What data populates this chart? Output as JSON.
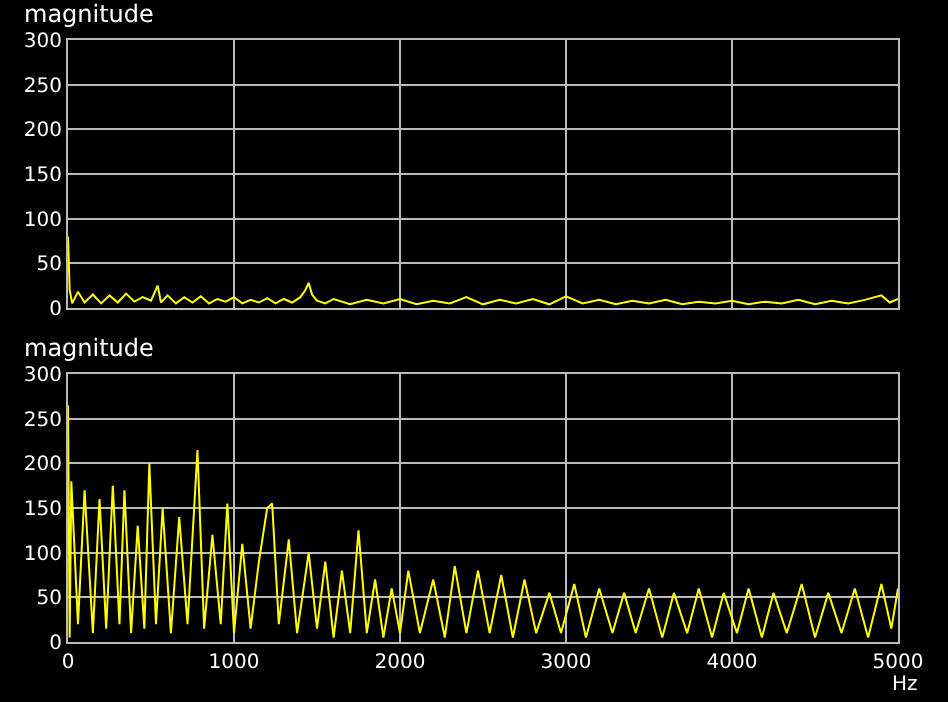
{
  "chart_data": [
    {
      "type": "line",
      "ylabel": "magnitude",
      "xlim": [
        0,
        5000
      ],
      "xticks": [
        0,
        1000,
        2000,
        3000,
        4000,
        5000
      ],
      "ylim": [
        0,
        300
      ],
      "yticks": [
        0,
        50,
        100,
        150,
        200,
        250,
        300
      ],
      "grid": true,
      "tick_labels": "y",
      "series": [
        {
          "color": "#ffff00",
          "x": [
            0,
            10,
            25,
            60,
            100,
            150,
            200,
            250,
            300,
            350,
            400,
            450,
            500,
            540,
            560,
            600,
            650,
            700,
            750,
            800,
            850,
            900,
            950,
            1000,
            1050,
            1100,
            1150,
            1200,
            1250,
            1300,
            1350,
            1400,
            1430,
            1450,
            1470,
            1500,
            1550,
            1600,
            1700,
            1800,
            1900,
            2000,
            2100,
            2200,
            2300,
            2400,
            2500,
            2600,
            2700,
            2800,
            2900,
            3000,
            3100,
            3200,
            3300,
            3400,
            3500,
            3600,
            3700,
            3800,
            3900,
            4000,
            4100,
            4200,
            4300,
            4400,
            4500,
            4600,
            4700,
            4800,
            4900,
            4950,
            5000
          ],
          "values": [
            80,
            20,
            5,
            18,
            6,
            15,
            5,
            14,
            6,
            16,
            7,
            12,
            8,
            25,
            6,
            14,
            5,
            12,
            6,
            13,
            5,
            10,
            7,
            12,
            5,
            9,
            6,
            11,
            5,
            10,
            6,
            12,
            20,
            28,
            15,
            8,
            5,
            10,
            4,
            9,
            5,
            10,
            4,
            8,
            5,
            12,
            4,
            9,
            5,
            10,
            4,
            13,
            5,
            9,
            4,
            8,
            5,
            9,
            4,
            7,
            5,
            8,
            4,
            7,
            5,
            9,
            4,
            8,
            5,
            9,
            14,
            6,
            10
          ]
        }
      ]
    },
    {
      "type": "line",
      "ylabel": "magnitude",
      "xlabel": "Hz",
      "xlim": [
        0,
        5000
      ],
      "xticks": [
        0,
        1000,
        2000,
        3000,
        4000,
        5000
      ],
      "ylim": [
        0,
        300
      ],
      "yticks": [
        0,
        50,
        100,
        150,
        200,
        250,
        300
      ],
      "grid": true,
      "series": [
        {
          "color": "#ffff00",
          "x": [
            0,
            10,
            20,
            60,
            100,
            150,
            190,
            230,
            270,
            310,
            340,
            380,
            420,
            460,
            490,
            530,
            570,
            620,
            670,
            720,
            780,
            820,
            870,
            920,
            960,
            1000,
            1050,
            1100,
            1150,
            1200,
            1230,
            1270,
            1330,
            1380,
            1450,
            1500,
            1550,
            1600,
            1650,
            1700,
            1750,
            1800,
            1850,
            1900,
            1950,
            2000,
            2050,
            2120,
            2200,
            2270,
            2330,
            2400,
            2470,
            2540,
            2610,
            2680,
            2750,
            2820,
            2900,
            2970,
            3050,
            3120,
            3200,
            3280,
            3350,
            3420,
            3500,
            3580,
            3650,
            3730,
            3800,
            3880,
            3950,
            4030,
            4100,
            4180,
            4250,
            4330,
            4420,
            4500,
            4580,
            4660,
            4740,
            4820,
            4900,
            4960,
            5000
          ],
          "values": [
            265,
            5,
            180,
            20,
            170,
            10,
            160,
            15,
            175,
            20,
            170,
            10,
            130,
            15,
            200,
            20,
            150,
            10,
            140,
            20,
            215,
            15,
            120,
            20,
            155,
            10,
            110,
            15,
            90,
            150,
            155,
            20,
            115,
            10,
            100,
            15,
            90,
            5,
            80,
            10,
            125,
            10,
            70,
            5,
            60,
            10,
            80,
            10,
            70,
            5,
            85,
            10,
            80,
            10,
            75,
            5,
            70,
            10,
            55,
            10,
            65,
            5,
            60,
            10,
            55,
            10,
            60,
            5,
            55,
            10,
            60,
            5,
            55,
            10,
            60,
            5,
            55,
            10,
            65,
            5,
            55,
            10,
            60,
            5,
            65,
            15,
            60
          ]
        }
      ]
    }
  ]
}
